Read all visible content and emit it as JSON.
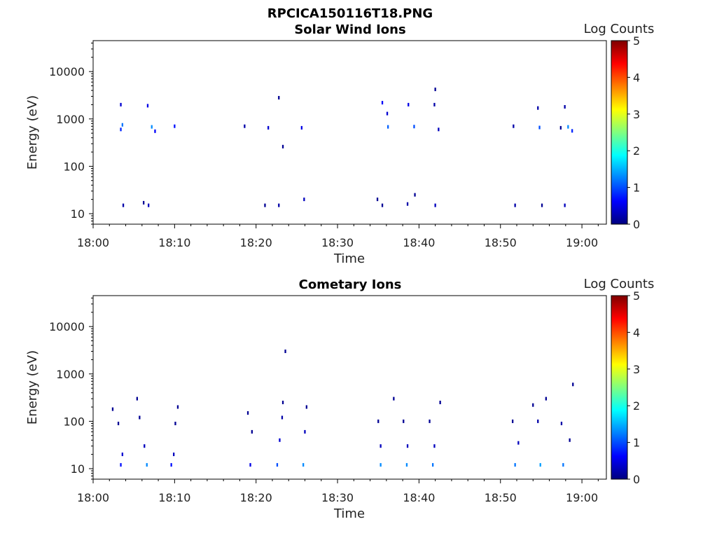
{
  "figure_title": "RPCICA150116T18.PNG",
  "chart_data": [
    {
      "type": "heatmap",
      "title": "Solar Wind Ions",
      "xlabel": "Time",
      "ylabel": "Energy (eV)",
      "x_tick_labels": [
        "18:00",
        "18:10",
        "18:20",
        "18:30",
        "18:40",
        "18:50",
        "19:00"
      ],
      "x_range_min": [
        0,
        63
      ],
      "y_scale": "log",
      "y_ticks": [
        10,
        100,
        1000,
        10000
      ],
      "y_tick_labels": [
        "10",
        "100",
        "1000",
        "10000"
      ],
      "y_range_ev": [
        6,
        45000
      ],
      "colorbar_label": "Log Counts",
      "colorbar_ticks": [
        "0",
        "1",
        "2",
        "3",
        "4",
        "5"
      ],
      "colorbar_range": [
        0,
        5
      ],
      "colormap": "jet",
      "cells": [
        [
          3.4,
          2000,
          0.4
        ],
        [
          3.6,
          750,
          1.2
        ],
        [
          3.4,
          600,
          0.8
        ],
        [
          3.7,
          15,
          0.2
        ],
        [
          6.7,
          1900,
          0.5
        ],
        [
          7.2,
          680,
          1.3
        ],
        [
          7.6,
          550,
          0.6
        ],
        [
          6.2,
          17,
          0.1
        ],
        [
          6.8,
          15,
          0.3
        ],
        [
          10.0,
          700,
          0.7
        ],
        [
          18.6,
          700,
          0.2
        ],
        [
          21.5,
          650,
          0.4
        ],
        [
          22.8,
          2800,
          0.1
        ],
        [
          23.3,
          260,
          0.1
        ],
        [
          21.1,
          15,
          0.1
        ],
        [
          22.8,
          15,
          0.2
        ],
        [
          25.6,
          650,
          0.5
        ],
        [
          25.9,
          20,
          0.3
        ],
        [
          35.5,
          2200,
          0.6
        ],
        [
          36.1,
          1300,
          0.4
        ],
        [
          36.2,
          680,
          1.1
        ],
        [
          35.5,
          15,
          0.1
        ],
        [
          34.9,
          20,
          0.1
        ],
        [
          38.7,
          2000,
          0.5
        ],
        [
          39.4,
          690,
          1.0
        ],
        [
          38.6,
          16,
          0.2
        ],
        [
          39.5,
          25,
          0.1
        ],
        [
          41.9,
          2000,
          0.2
        ],
        [
          42.0,
          4200,
          0.1
        ],
        [
          42.4,
          600,
          0.3
        ],
        [
          42.0,
          15,
          0.3
        ],
        [
          51.6,
          700,
          0.2
        ],
        [
          54.6,
          1700,
          0.2
        ],
        [
          54.8,
          660,
          1.0
        ],
        [
          51.8,
          15,
          0.2
        ],
        [
          55.1,
          15,
          0.1
        ],
        [
          57.4,
          650,
          0.1
        ],
        [
          57.9,
          1800,
          0.2
        ],
        [
          58.3,
          680,
          1.3
        ],
        [
          58.8,
          560,
          0.8
        ],
        [
          57.9,
          15,
          0.3
        ]
      ]
    },
    {
      "type": "heatmap",
      "title": "Cometary Ions",
      "xlabel": "Time",
      "ylabel": "Energy (eV)",
      "x_tick_labels": [
        "18:00",
        "18:10",
        "18:20",
        "18:30",
        "18:40",
        "18:50",
        "19:00"
      ],
      "x_range_min": [
        0,
        63
      ],
      "y_scale": "log",
      "y_ticks": [
        10,
        100,
        1000,
        10000
      ],
      "y_tick_labels": [
        "10",
        "100",
        "1000",
        "10000"
      ],
      "y_range_ev": [
        6,
        45000
      ],
      "colorbar_label": "Log Counts",
      "colorbar_ticks": [
        "0",
        "1",
        "2",
        "3",
        "4",
        "5"
      ],
      "colorbar_range": [
        0,
        5
      ],
      "colormap": "jet",
      "cells": [
        [
          3.4,
          12,
          0.7
        ],
        [
          3.6,
          20,
          0.4
        ],
        [
          3.1,
          90,
          0.1
        ],
        [
          2.4,
          180,
          0.1
        ],
        [
          6.6,
          12,
          1.3
        ],
        [
          6.3,
          30,
          0.3
        ],
        [
          5.7,
          120,
          0.1
        ],
        [
          5.4,
          300,
          0.1
        ],
        [
          9.6,
          12,
          0.7
        ],
        [
          9.9,
          20,
          0.3
        ],
        [
          10.4,
          200,
          0.1
        ],
        [
          10.1,
          90,
          0.1
        ],
        [
          19.3,
          12,
          0.5
        ],
        [
          19.5,
          60,
          0.1
        ],
        [
          19.0,
          150,
          0.1
        ],
        [
          22.6,
          12,
          1.0
        ],
        [
          22.9,
          40,
          0.4
        ],
        [
          23.2,
          120,
          0.2
        ],
        [
          23.3,
          250,
          0.1
        ],
        [
          23.6,
          3000,
          0.1
        ],
        [
          25.8,
          12,
          1.3
        ],
        [
          26.0,
          60,
          0.3
        ],
        [
          26.2,
          200,
          0.1
        ],
        [
          35.3,
          12,
          1.3
        ],
        [
          35.0,
          100,
          0.1
        ],
        [
          35.3,
          30,
          0.3
        ],
        [
          36.9,
          300,
          0.1
        ],
        [
          38.5,
          12,
          1.3
        ],
        [
          38.1,
          100,
          0.1
        ],
        [
          38.6,
          30,
          0.3
        ],
        [
          41.7,
          12,
          1.2
        ],
        [
          41.3,
          100,
          0.1
        ],
        [
          42.6,
          250,
          0.1
        ],
        [
          41.9,
          30,
          0.3
        ],
        [
          51.8,
          12,
          1.2
        ],
        [
          51.5,
          100,
          0.1
        ],
        [
          52.2,
          35,
          0.3
        ],
        [
          54.0,
          220,
          0.1
        ],
        [
          54.9,
          12,
          1.4
        ],
        [
          54.6,
          100,
          0.2
        ],
        [
          55.6,
          300,
          0.1
        ],
        [
          57.7,
          12,
          1.2
        ],
        [
          57.5,
          90,
          0.2
        ],
        [
          58.5,
          40,
          0.1
        ],
        [
          58.9,
          600,
          0.1
        ]
      ]
    }
  ]
}
